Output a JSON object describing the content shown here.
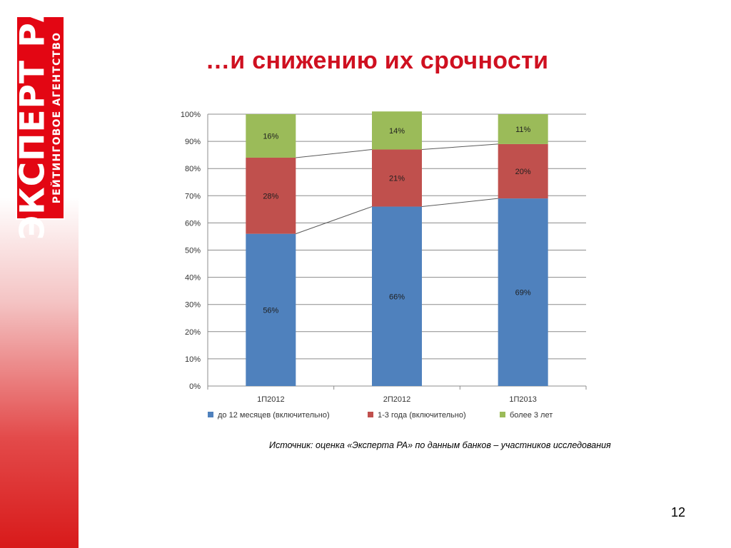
{
  "logo": {
    "main_text": "ЭКСПЕРТ РА",
    "sub_text": "РЕЙТИНГОВОЕ АГЕНТСТВО"
  },
  "slide": {
    "title": "…и снижению их срочности",
    "source": "Источник: оценка «Эксперта РА» по данным банков – участников исследования",
    "page_number": "12"
  },
  "colors": {
    "accent": "#e30613",
    "title": "#cf1020",
    "series": [
      "#4f81bd",
      "#c0504d",
      "#9bbb59"
    ]
  },
  "chart_data": {
    "type": "bar",
    "stacked": true,
    "categories": [
      "1П2012",
      "2П2012",
      "1П2013"
    ],
    "series": [
      {
        "name": "до 12 месяцев (включительно)",
        "values": [
          56,
          66,
          69
        ],
        "labels": [
          "56%",
          "66%",
          "69%"
        ]
      },
      {
        "name": "1-3 года (включительно)",
        "values": [
          28,
          21,
          20
        ],
        "labels": [
          "28%",
          "21%",
          "20%"
        ]
      },
      {
        "name": "более 3 лет",
        "values": [
          16,
          14,
          11
        ],
        "labels": [
          "16%",
          "14%",
          "11%"
        ]
      }
    ],
    "ylim": [
      0,
      100
    ],
    "yticks": [
      "0%",
      "10%",
      "20%",
      "30%",
      "40%",
      "50%",
      "60%",
      "70%",
      "80%",
      "90%",
      "100%"
    ],
    "grid": true,
    "series_lines": true,
    "legend_position": "bottom"
  }
}
